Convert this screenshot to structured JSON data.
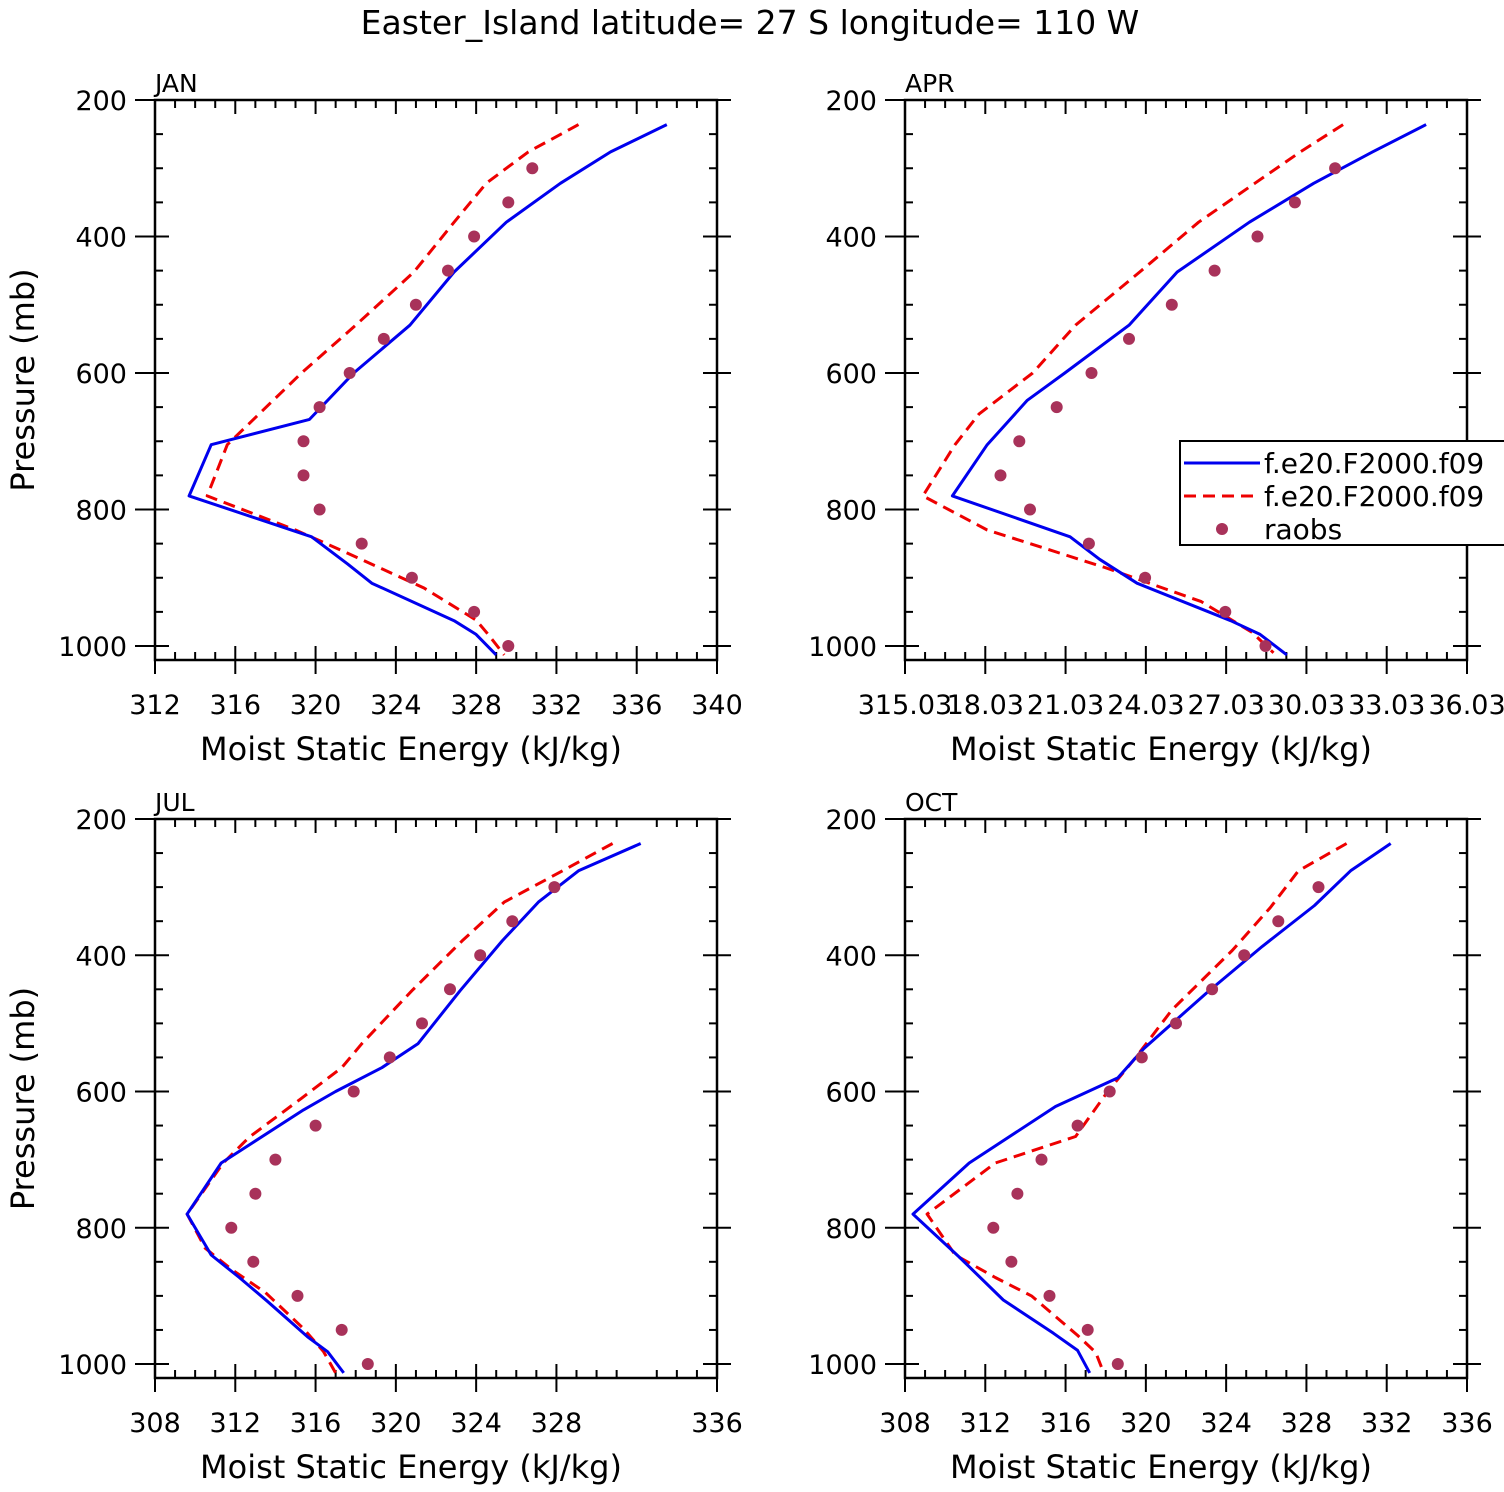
{
  "figure_title": "Easter_Island  latitude= 27 S longitude= 110 W",
  "colors": {
    "model1": "#0000ee",
    "model2": "#ee0000",
    "obs": "#a8325a",
    "axis": "#000000"
  },
  "legend": [
    {
      "label": "f.e20.F2000.f09",
      "style": "solid",
      "color": "#0000ee"
    },
    {
      "label": "f.e20.F2000.f09",
      "style": "dashed",
      "color": "#ee0000"
    },
    {
      "label": "raobs",
      "style": "marker",
      "color": "#a8325a"
    }
  ],
  "chart_data": [
    {
      "type": "line",
      "panel": "JAN",
      "title": "JAN",
      "xlabel": "Moist Static Energy (kJ/kg)",
      "ylabel": "Pressure (mb)",
      "xlim": [
        312,
        340
      ],
      "ylim": [
        1000,
        200
      ],
      "xticks": [
        "312",
        "316",
        "320",
        "324",
        "328",
        "332",
        "336",
        "340"
      ],
      "yticks": [
        "200",
        "400",
        "600",
        "800",
        "1000"
      ],
      "series": [
        {
          "name": "f.e20.F2000.f09 (solid)",
          "x": [
            337.5,
            334.7,
            332.2,
            329.5,
            326.9,
            324.7,
            321.9,
            319.7,
            314.8,
            313.7,
            319.8,
            321.6,
            322.8,
            326.9,
            328.0,
            329.0
          ],
          "y": [
            236,
            276,
            322,
            379,
            452,
            530,
            600,
            668,
            705,
            780,
            840,
            880,
            908,
            963,
            983,
            1013
          ]
        },
        {
          "name": "f.e20.F2000.f09 (dashed)",
          "x": [
            333.1,
            330.6,
            328.5,
            326.9,
            324.9,
            322.0,
            319.3,
            315.6,
            314.6,
            319.0,
            321.3,
            325.4,
            328.0,
            328.6,
            329.4
          ],
          "y": [
            236,
            276,
            322,
            379,
            452,
            530,
            600,
            705,
            780,
            830,
            860,
            915,
            962,
            983,
            1013
          ]
        },
        {
          "name": "raobs",
          "x": [
            330.8,
            329.6,
            327.9,
            326.6,
            325.0,
            323.4,
            321.7,
            320.2,
            319.4,
            319.4,
            320.2,
            322.3,
            324.8,
            327.9,
            329.6
          ],
          "y": [
            300,
            350,
            400,
            450,
            500,
            550,
            600,
            650,
            700,
            750,
            800,
            850,
            900,
            950,
            1000
          ]
        }
      ]
    },
    {
      "type": "line",
      "panel": "APR",
      "title": "APR",
      "xlabel": "Moist Static Energy (kJ/kg)",
      "ylabel": "",
      "xlim": [
        315.03,
        336.03
      ],
      "ylim": [
        1000,
        200
      ],
      "xticks": [
        "315.03",
        "18.03",
        "21.03",
        "24.03",
        "27.03",
        "30.03",
        "33.03",
        "36.03"
      ],
      "yticks": [
        "200",
        "400",
        "600",
        "800",
        "1000"
      ],
      "series": [
        {
          "name": "f.e20.F2000.f09 (solid)",
          "x": [
            334.5,
            332.5,
            330.3,
            327.9,
            325.2,
            323.4,
            321.0,
            319.6,
            318.1,
            316.8,
            321.2,
            322.3,
            323.7,
            327.2,
            328.3,
            329.3
          ],
          "y": [
            236,
            276,
            322,
            379,
            452,
            530,
            600,
            640,
            705,
            780,
            840,
            873,
            908,
            963,
            983,
            1013
          ]
        },
        {
          "name": "f.e20.F2000.f09 (dashed)",
          "x": [
            331.4,
            329.8,
            328.1,
            326.0,
            323.8,
            321.4,
            319.8,
            317.8,
            316.9,
            315.7,
            318.1,
            322.5,
            326.1,
            328.0,
            328.8
          ],
          "y": [
            236,
            276,
            322,
            379,
            452,
            530,
            600,
            660,
            705,
            780,
            830,
            885,
            935,
            980,
            1010
          ]
        },
        {
          "name": "raobs",
          "x": [
            331.1,
            329.6,
            328.2,
            326.6,
            325.0,
            323.4,
            322.0,
            320.7,
            319.3,
            318.6,
            319.7,
            321.9,
            324.0,
            327.0,
            328.5
          ],
          "y": [
            300,
            350,
            400,
            450,
            500,
            550,
            600,
            650,
            700,
            750,
            800,
            850,
            900,
            950,
            1000
          ]
        }
      ]
    },
    {
      "type": "line",
      "panel": "JUL",
      "title": "JUL",
      "xlabel": "Moist Static Energy (kJ/kg)",
      "ylabel": "Pressure (mb)",
      "xlim": [
        308,
        336
      ],
      "ylim": [
        1000,
        200
      ],
      "xticks": [
        "308",
        "312",
        "316",
        "320",
        "324",
        "328",
        "336"
      ],
      "yticks": [
        "200",
        "400",
        "600",
        "800",
        "1000"
      ],
      "series": [
        {
          "name": "f.e20.F2000.f09 (solid)",
          "x": [
            332.2,
            329.1,
            327.1,
            325.3,
            323.2,
            321.1,
            319.3,
            317.0,
            315.4,
            311.3,
            309.6,
            310.8,
            312.2,
            313.6,
            315.6,
            316.6,
            317.4
          ],
          "y": [
            236,
            276,
            322,
            379,
            452,
            530,
            565,
            600,
            627,
            705,
            780,
            840,
            873,
            908,
            960,
            982,
            1013
          ]
        },
        {
          "name": "f.e20.F2000.f09 (dashed)",
          "x": [
            330.8,
            328.3,
            325.4,
            323.3,
            320.8,
            318.3,
            317.3,
            315.3,
            312.7,
            311.4,
            309.6,
            310.5,
            311.9,
            313.5,
            315.4,
            316.4,
            317.0
          ],
          "y": [
            236,
            276,
            322,
            379,
            452,
            530,
            565,
            610,
            667,
            705,
            780,
            830,
            863,
            895,
            948,
            982,
            1013
          ]
        },
        {
          "name": "raobs",
          "x": [
            327.9,
            325.8,
            324.2,
            322.7,
            321.3,
            319.7,
            317.9,
            316.0,
            314.0,
            313.0,
            311.8,
            312.9,
            315.1,
            317.3,
            318.6
          ],
          "y": [
            300,
            350,
            400,
            450,
            500,
            550,
            600,
            650,
            700,
            750,
            800,
            850,
            900,
            950,
            1000
          ]
        }
      ]
    },
    {
      "type": "line",
      "panel": "OCT",
      "title": "OCT",
      "xlabel": "Moist Static Energy (kJ/kg)",
      "ylabel": "",
      "xlim": [
        308,
        336
      ],
      "ylim": [
        1000,
        200
      ],
      "xticks": [
        "308",
        "312",
        "316",
        "320",
        "324",
        "328",
        "332",
        "336"
      ],
      "yticks": [
        "200",
        "400",
        "600",
        "800",
        "1000"
      ],
      "series": [
        {
          "name": "f.e20.F2000.f09 (solid)",
          "x": [
            332.2,
            330.2,
            328.4,
            325.8,
            323.0,
            319.9,
            318.6,
            315.5,
            311.2,
            308.4,
            310.7,
            312.9,
            315.4,
            316.6,
            317.2
          ],
          "y": [
            236,
            276,
            327,
            387,
            456,
            537,
            580,
            622,
            705,
            780,
            843,
            906,
            955,
            980,
            1013
          ]
        },
        {
          "name": "f.e20.F2000.f09 (dashed)",
          "x": [
            330.0,
            327.6,
            326.2,
            324.3,
            321.3,
            319.5,
            318.1,
            316.5,
            312.5,
            309.1,
            310.5,
            312.5,
            314.3,
            316.6,
            317.5,
            317.9
          ],
          "y": [
            236,
            276,
            330,
            393,
            480,
            550,
            600,
            666,
            705,
            780,
            840,
            873,
            900,
            958,
            983,
            1013
          ]
        },
        {
          "name": "raobs",
          "x": [
            328.6,
            326.6,
            324.9,
            323.3,
            321.5,
            319.8,
            318.2,
            316.6,
            314.8,
            313.6,
            312.4,
            313.3,
            315.2,
            317.1,
            318.6
          ],
          "y": [
            300,
            350,
            400,
            450,
            500,
            550,
            600,
            650,
            700,
            750,
            800,
            850,
            900,
            950,
            1000
          ]
        }
      ]
    }
  ]
}
